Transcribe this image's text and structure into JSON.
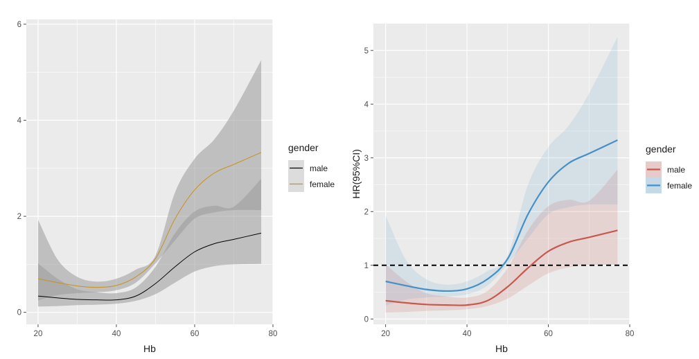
{
  "colors": {
    "panel_bg": "#ebebeb",
    "grid": "#ffffff",
    "left_band": "#9a9a9a",
    "left_male": "#000000",
    "left_female": "#c8911a",
    "right_male": "#c8574d",
    "right_female": "#4390c8",
    "axis_text": "#4d4d4d",
    "title_text": "#1a1a1a",
    "ref_line": "#000000"
  },
  "chart_data": [
    {
      "type": "line",
      "title": "",
      "xlabel": "Hb",
      "ylabel": "",
      "xlim": [
        17,
        80
      ],
      "ylim": [
        -0.25,
        6.1
      ],
      "x_ticks": [
        "20",
        "40",
        "60",
        "80"
      ],
      "y_ticks": [
        "0",
        "2",
        "4",
        "6"
      ],
      "x": [
        20,
        25,
        30,
        35,
        40,
        45,
        50,
        55,
        60,
        65,
        70,
        77
      ],
      "series": [
        {
          "name": "male",
          "values": [
            0.34,
            0.3,
            0.27,
            0.26,
            0.26,
            0.34,
            0.6,
            0.95,
            1.26,
            1.43,
            1.52,
            1.65
          ],
          "lower": [
            0.12,
            0.13,
            0.15,
            0.16,
            0.18,
            0.24,
            0.38,
            0.62,
            0.85,
            0.96,
            1.0,
            1.01
          ],
          "upper": [
            1.02,
            0.7,
            0.48,
            0.42,
            0.4,
            0.52,
            0.95,
            1.65,
            2.1,
            2.22,
            2.2,
            2.78
          ]
        },
        {
          "name": "female",
          "values": [
            0.7,
            0.62,
            0.55,
            0.52,
            0.56,
            0.74,
            1.12,
            1.95,
            2.55,
            2.9,
            3.08,
            3.33
          ],
          "lower": [
            0.25,
            0.36,
            0.4,
            0.42,
            0.46,
            0.62,
            1.02,
            1.5,
            1.95,
            2.08,
            2.13,
            2.13
          ],
          "upper": [
            1.93,
            1.1,
            0.74,
            0.64,
            0.7,
            0.89,
            1.18,
            2.5,
            3.2,
            3.6,
            4.2,
            5.25
          ]
        }
      ],
      "legend": {
        "title": "gender",
        "placement": "right",
        "entries": [
          "male",
          "female"
        ]
      },
      "grid": true
    },
    {
      "type": "line",
      "title": "",
      "xlabel": "Hb",
      "ylabel": "HR(95%CI)",
      "xlim": [
        17,
        80
      ],
      "ylim": [
        -0.1,
        5.5
      ],
      "x_ticks": [
        "20",
        "40",
        "60",
        "80"
      ],
      "y_ticks": [
        "0",
        "1",
        "2",
        "3",
        "4",
        "5"
      ],
      "reference_line": 1,
      "x": [
        20,
        25,
        30,
        35,
        40,
        45,
        50,
        55,
        60,
        65,
        70,
        77
      ],
      "series": [
        {
          "name": "male",
          "values": [
            0.34,
            0.3,
            0.27,
            0.26,
            0.26,
            0.34,
            0.6,
            0.95,
            1.26,
            1.43,
            1.52,
            1.65
          ],
          "lower": [
            0.12,
            0.13,
            0.15,
            0.16,
            0.18,
            0.24,
            0.38,
            0.62,
            0.85,
            0.96,
            1.0,
            1.01
          ],
          "upper": [
            1.02,
            0.7,
            0.48,
            0.42,
            0.4,
            0.52,
            0.95,
            1.65,
            2.1,
            2.22,
            2.2,
            2.78
          ]
        },
        {
          "name": "female",
          "values": [
            0.7,
            0.62,
            0.55,
            0.52,
            0.56,
            0.74,
            1.12,
            1.95,
            2.55,
            2.9,
            3.08,
            3.33
          ],
          "lower": [
            0.25,
            0.36,
            0.4,
            0.42,
            0.46,
            0.62,
            1.02,
            1.5,
            1.95,
            2.08,
            2.13,
            2.13
          ],
          "upper": [
            1.93,
            1.1,
            0.74,
            0.64,
            0.7,
            0.89,
            1.18,
            2.5,
            3.2,
            3.6,
            4.2,
            5.25
          ]
        }
      ],
      "legend": {
        "title": "gender",
        "placement": "right",
        "entries": [
          "male",
          "female"
        ]
      },
      "grid": true
    }
  ]
}
